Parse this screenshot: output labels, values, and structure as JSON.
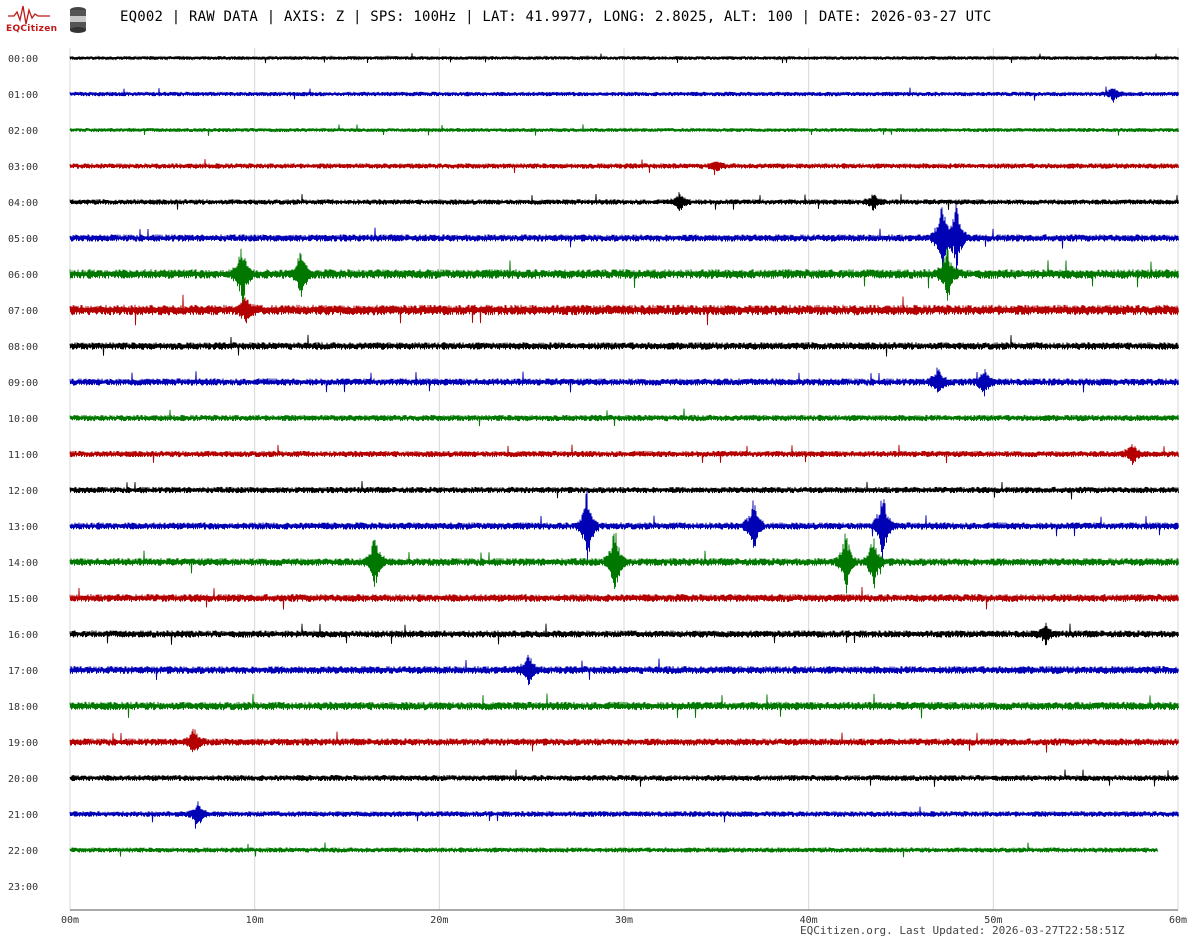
{
  "header": {
    "logo_text": "EQCitizen",
    "title": "EQ002 | RAW DATA | AXIS: Z | SPS: 100Hz | LAT: 41.9977, LONG: 2.8025, ALT: 100 | DATE: 2026-03-27 UTC"
  },
  "footer": {
    "text": "EQCitizen.org. Last Updated: 2026-03-27T22:58:51Z"
  },
  "colors": {
    "cycle": [
      "#000000",
      "#0000b4",
      "#007800",
      "#b40000"
    ],
    "grid": "#d8d8d8",
    "axis": "#555555"
  },
  "chart_data": {
    "type": "helicorder",
    "xlim": [
      0,
      60
    ],
    "x_unit": "minutes",
    "x_ticks": [
      "00m",
      "10m",
      "20m",
      "30m",
      "40m",
      "50m",
      "60m"
    ],
    "row_labels": [
      "00:00",
      "01:00",
      "02:00",
      "03:00",
      "04:00",
      "05:00",
      "06:00",
      "07:00",
      "08:00",
      "09:00",
      "10:00",
      "11:00",
      "12:00",
      "13:00",
      "14:00",
      "15:00",
      "16:00",
      "17:00",
      "18:00",
      "19:00",
      "20:00",
      "21:00",
      "22:00",
      "23:00"
    ],
    "rows_with_data": 23,
    "last_row_end_minute": 58.9,
    "row_noise_levels": [
      1.2,
      1.5,
      1.3,
      1.8,
      1.8,
      2.4,
      3.2,
      3.5,
      2.5,
      2.4,
      2.1,
      2.1,
      2.1,
      2.4,
      2.6,
      2.6,
      2.4,
      2.6,
      2.8,
      2.4,
      2.0,
      1.9,
      1.7
    ],
    "events": [
      {
        "hour": 1,
        "minute": 56.5,
        "amp": 8
      },
      {
        "hour": 3,
        "minute": 35,
        "amp": 5
      },
      {
        "hour": 4,
        "minute": 33,
        "amp": 10
      },
      {
        "hour": 4,
        "minute": 43.5,
        "amp": 9
      },
      {
        "hour": 5,
        "minute": 47.2,
        "amp": 45
      },
      {
        "hour": 5,
        "minute": 48,
        "amp": 40
      },
      {
        "hour": 6,
        "minute": 9.3,
        "amp": 35
      },
      {
        "hour": 6,
        "minute": 12.5,
        "amp": 25
      },
      {
        "hour": 6,
        "minute": 47.5,
        "amp": 30
      },
      {
        "hour": 7,
        "minute": 9.5,
        "amp": 14
      },
      {
        "hour": 9,
        "minute": 47,
        "amp": 16
      },
      {
        "hour": 9,
        "minute": 49.5,
        "amp": 14
      },
      {
        "hour": 11,
        "minute": 57.5,
        "amp": 12
      },
      {
        "hour": 13,
        "minute": 28,
        "amp": 40
      },
      {
        "hour": 13,
        "minute": 37,
        "amp": 30
      },
      {
        "hour": 13,
        "minute": 44,
        "amp": 40
      },
      {
        "hour": 14,
        "minute": 16.5,
        "amp": 30
      },
      {
        "hour": 14,
        "minute": 29.5,
        "amp": 38
      },
      {
        "hour": 14,
        "minute": 42,
        "amp": 35
      },
      {
        "hour": 14,
        "minute": 43.5,
        "amp": 30
      },
      {
        "hour": 16,
        "minute": 52.8,
        "amp": 10
      },
      {
        "hour": 17,
        "minute": 24.8,
        "amp": 18
      },
      {
        "hour": 19,
        "minute": 6.7,
        "amp": 14
      },
      {
        "hour": 21,
        "minute": 6.9,
        "amp": 14
      }
    ]
  }
}
